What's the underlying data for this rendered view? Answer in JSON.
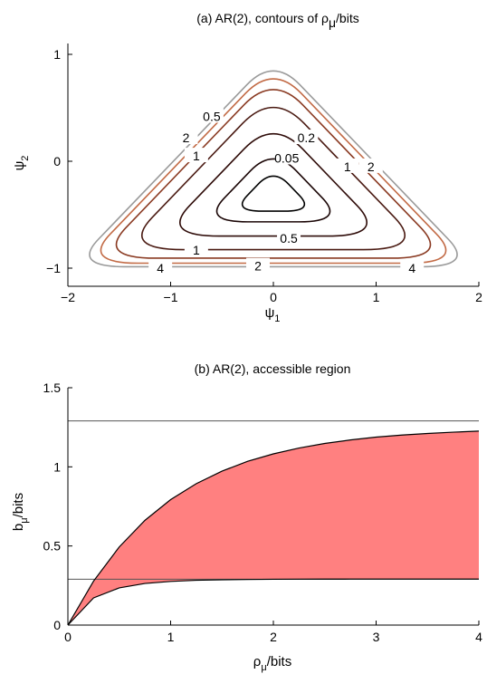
{
  "chart_data": [
    {
      "type": "contour",
      "title": "(a) AR(2), contours of ρ_μ/bits",
      "title_parts": {
        "main": "(a) AR(2), contours of ρ",
        "sub": "μ",
        "tail": "/bits"
      },
      "xlabel": {
        "main": "ψ",
        "sub": "1"
      },
      "ylabel": {
        "main": "ψ",
        "sub": "2"
      },
      "xlim": [
        -2,
        2
      ],
      "ylim": [
        -1,
        1
      ],
      "xticks": [
        -2,
        -1,
        0,
        1,
        2
      ],
      "yticks": [
        -1,
        0,
        1
      ],
      "xtick_labels": [
        "−2",
        "−1",
        "0",
        "1",
        "2"
      ],
      "ytick_labels": [
        "−1",
        "0",
        "1"
      ],
      "grid": false,
      "region": "stationarity triangle with vertices (−2,−1), (2,−1), (0,1)",
      "levels": [
        {
          "value": 0.05,
          "label": "0.05",
          "color": "#000000",
          "inset": 0.8,
          "label_pos": [
            0.13,
            0.03
          ]
        },
        {
          "value": 0.2,
          "label": "0.2",
          "color": "#1a0505",
          "inset": 0.65,
          "label_pos": [
            0.32,
            0.22
          ]
        },
        {
          "value": 0.5,
          "label": "0.5",
          "color": "#2e0b08",
          "inset": 0.45,
          "label_pos": [
            -0.6,
            0.42
          ]
        },
        {
          "value": 0.5,
          "label": "0.5",
          "color": "#2e0b08",
          "inset": 0.45,
          "label_pos": [
            0.15,
            -0.72
          ]
        },
        {
          "value": 1,
          "label": "1",
          "color": "#4a1a12",
          "inset": 0.26,
          "label_pos": [
            -0.75,
            0.05
          ]
        },
        {
          "value": 1,
          "label": "1",
          "color": "#4a1a12",
          "inset": 0.26,
          "label_pos": [
            0.72,
            -0.05
          ]
        },
        {
          "value": 1,
          "label": "1",
          "color": "#4a1a12",
          "inset": 0.26,
          "label_pos": [
            -0.75,
            -0.83
          ]
        },
        {
          "value": 2,
          "label": "2",
          "color": "#8a3a22",
          "inset": 0.14,
          "label_pos": [
            -0.85,
            0.22
          ]
        },
        {
          "value": 2,
          "label": "2",
          "color": "#8a3a22",
          "inset": 0.14,
          "label_pos": [
            0.95,
            -0.05
          ]
        },
        {
          "value": 2,
          "label": "2",
          "color": "#8a3a22",
          "inset": 0.14,
          "label_pos": [
            -0.15,
            -0.98
          ]
        },
        {
          "value": 4,
          "label": "4",
          "color": "#c26a45",
          "inset": 0.07,
          "label_pos": [
            -1.1,
            -1.0
          ]
        },
        {
          "value": 4,
          "label": "4",
          "color": "#c26a45",
          "inset": 0.07,
          "label_pos": [
            1.35,
            -1.0
          ]
        },
        {
          "value": 8,
          "label": "",
          "color": "#9a9a9a",
          "inset": 0.02,
          "label_pos": null
        }
      ]
    },
    {
      "type": "area",
      "title": "(b) AR(2), accessible region",
      "xlabel": {
        "main": "ρ",
        "sub": "μ",
        "tail": "/bits"
      },
      "ylabel": {
        "main": "b",
        "sub": "μ",
        "tail": "/bits"
      },
      "xlim": [
        0,
        4
      ],
      "ylim": [
        0,
        1.5
      ],
      "xticks": [
        0,
        1,
        2,
        3,
        4
      ],
      "yticks": [
        0,
        0.5,
        1,
        1.5
      ],
      "xtick_labels": [
        "0",
        "1",
        "2",
        "3",
        "4"
      ],
      "ytick_labels": [
        "0",
        "0.5",
        "1",
        "1.5"
      ],
      "grid": false,
      "fill_color": "#ff8080",
      "upper_boundary": {
        "x": [
          0,
          0.25,
          0.5,
          0.75,
          1,
          1.25,
          1.5,
          1.75,
          2,
          2.25,
          2.5,
          2.75,
          3,
          3.25,
          3.5,
          3.75,
          4
        ],
        "y": [
          0,
          0.278,
          0.494,
          0.662,
          0.793,
          0.894,
          0.973,
          1.035,
          1.082,
          1.119,
          1.148,
          1.17,
          1.188,
          1.201,
          1.211,
          1.219,
          1.226
        ]
      },
      "lower_boundary": {
        "x": [
          0,
          0.25,
          0.5,
          0.75,
          1,
          1.25,
          1.5,
          1.75,
          2,
          2.25,
          2.5,
          2.75,
          3,
          3.25,
          3.5,
          3.75,
          4
        ],
        "y": [
          0,
          0.172,
          0.235,
          0.263,
          0.276,
          0.283,
          0.286,
          0.288,
          0.2895,
          0.2902,
          0.2906,
          0.2908,
          0.2909,
          0.291,
          0.291,
          0.291,
          0.291
        ]
      },
      "hlines": [
        1.29,
        0.29
      ]
    }
  ]
}
